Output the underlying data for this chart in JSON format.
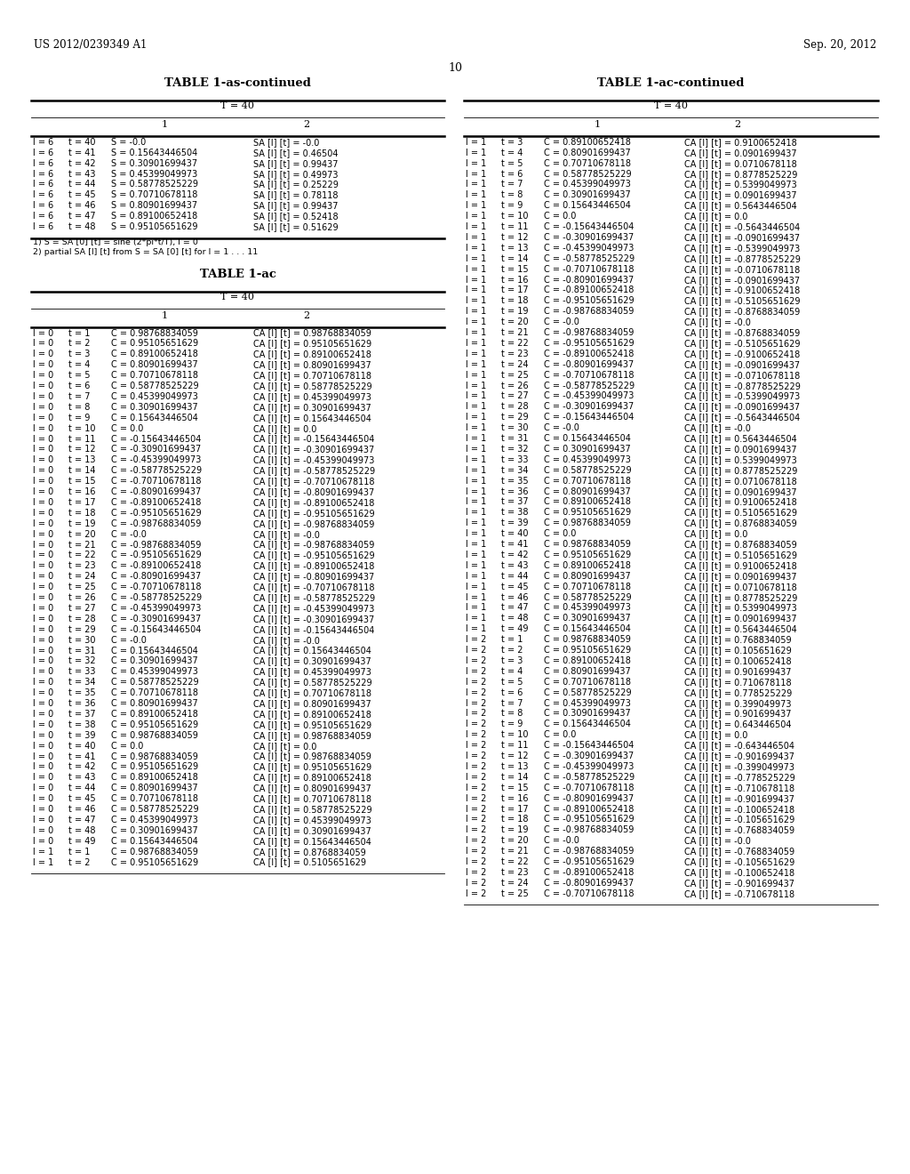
{
  "page_header_left": "US 2012/0239349 A1",
  "page_header_right": "Sep. 20, 2012",
  "page_number": "10",
  "bg_color": "#ffffff",
  "text_color": "#000000",
  "table_as_title": "TABLE 1-as-continued",
  "table_as_subtitle": "T = 40",
  "table_as_col1": "1",
  "table_as_col2": "2",
  "table_as_rows": [
    [
      "l = 6",
      "t = 40",
      "S = -0.0",
      "SA [l] [t] = -0.0"
    ],
    [
      "l = 6",
      "t = 41",
      "S = 0.15643446504",
      "SA [l] [t] = 0.46504"
    ],
    [
      "l = 6",
      "t = 42",
      "S = 0.30901699437",
      "SA [l] [t] = 0.99437"
    ],
    [
      "l = 6",
      "t = 43",
      "S = 0.45399049973",
      "SA [l] [t] = 0.49973"
    ],
    [
      "l = 6",
      "t = 44",
      "S = 0.58778525229",
      "SA [l] [t] = 0.25229"
    ],
    [
      "l = 6",
      "t = 45",
      "S = 0.70710678118",
      "SA [l] [t] = 0.78118"
    ],
    [
      "l = 6",
      "t = 46",
      "S = 0.80901699437",
      "SA [l] [t] = 0.99437"
    ],
    [
      "l = 6",
      "t = 47",
      "S = 0.89100652418",
      "SA [l] [t] = 0.52418"
    ],
    [
      "l = 6",
      "t = 48",
      "S = 0.95105651629",
      "SA [l] [t] = 0.51629"
    ]
  ],
  "table_as_footnotes": [
    "1) S = SA [0] [t] = sine (2*pi*t/T), l = 0",
    "2) partial SA [l] [t] from S = SA [0] [t] for l = 1 . . . 11"
  ],
  "table_ac_title": "TABLE 1-ac",
  "table_ac_subtitle": "T = 40",
  "table_ac_col1": "1",
  "table_ac_col2": "2",
  "table_ac_rows": [
    [
      "l = 0",
      "t = 1",
      "C = 0.98768834059",
      "CA [l] [t] = 0.98768834059"
    ],
    [
      "l = 0",
      "t = 2",
      "C = 0.95105651629",
      "CA [l] [t] = 0.95105651629"
    ],
    [
      "l = 0",
      "t = 3",
      "C = 0.89100652418",
      "CA [l] [t] = 0.89100652418"
    ],
    [
      "l = 0",
      "t = 4",
      "C = 0.80901699437",
      "CA [l] [t] = 0.80901699437"
    ],
    [
      "l = 0",
      "t = 5",
      "C = 0.70710678118",
      "CA [l] [t] = 0.70710678118"
    ],
    [
      "l = 0",
      "t = 6",
      "C = 0.58778525229",
      "CA [l] [t] = 0.58778525229"
    ],
    [
      "l = 0",
      "t = 7",
      "C = 0.45399049973",
      "CA [l] [t] = 0.45399049973"
    ],
    [
      "l = 0",
      "t = 8",
      "C = 0.30901699437",
      "CA [l] [t] = 0.30901699437"
    ],
    [
      "l = 0",
      "t = 9",
      "C = 0.15643446504",
      "CA [l] [t] = 0.15643446504"
    ],
    [
      "l = 0",
      "t = 10",
      "C = 0.0",
      "CA [l] [t] = 0.0"
    ],
    [
      "l = 0",
      "t = 11",
      "C = -0.15643446504",
      "CA [l] [t] = -0.15643446504"
    ],
    [
      "l = 0",
      "t = 12",
      "C = -0.30901699437",
      "CA [l] [t] = -0.30901699437"
    ],
    [
      "l = 0",
      "t = 13",
      "C = -0.45399049973",
      "CA [l] [t] = -0.45399049973"
    ],
    [
      "l = 0",
      "t = 14",
      "C = -0.58778525229",
      "CA [l] [t] = -0.58778525229"
    ],
    [
      "l = 0",
      "t = 15",
      "C = -0.70710678118",
      "CA [l] [t] = -0.70710678118"
    ],
    [
      "l = 0",
      "t = 16",
      "C = -0.80901699437",
      "CA [l] [t] = -0.80901699437"
    ],
    [
      "l = 0",
      "t = 17",
      "C = -0.89100652418",
      "CA [l] [t] = -0.89100652418"
    ],
    [
      "l = 0",
      "t = 18",
      "C = -0.95105651629",
      "CA [l] [t] = -0.95105651629"
    ],
    [
      "l = 0",
      "t = 19",
      "C = -0.98768834059",
      "CA [l] [t] = -0.98768834059"
    ],
    [
      "l = 0",
      "t = 20",
      "C = -0.0",
      "CA [l] [t] = -0.0"
    ],
    [
      "l = 0",
      "t = 21",
      "C = -0.98768834059",
      "CA [l] [t] = -0.98768834059"
    ],
    [
      "l = 0",
      "t = 22",
      "C = -0.95105651629",
      "CA [l] [t] = -0.95105651629"
    ],
    [
      "l = 0",
      "t = 23",
      "C = -0.89100652418",
      "CA [l] [t] = -0.89100652418"
    ],
    [
      "l = 0",
      "t = 24",
      "C = -0.80901699437",
      "CA [l] [t] = -0.80901699437"
    ],
    [
      "l = 0",
      "t = 25",
      "C = -0.70710678118",
      "CA [l] [t] = -0.70710678118"
    ],
    [
      "l = 0",
      "t = 26",
      "C = -0.58778525229",
      "CA [l] [t] = -0.58778525229"
    ],
    [
      "l = 0",
      "t = 27",
      "C = -0.45399049973",
      "CA [l] [t] = -0.45399049973"
    ],
    [
      "l = 0",
      "t = 28",
      "C = -0.30901699437",
      "CA [l] [t] = -0.30901699437"
    ],
    [
      "l = 0",
      "t = 29",
      "C = -0.15643446504",
      "CA [l] [t] = -0.15643446504"
    ],
    [
      "l = 0",
      "t = 30",
      "C = -0.0",
      "CA [l] [t] = -0.0"
    ],
    [
      "l = 0",
      "t = 31",
      "C = 0.15643446504",
      "CA [l] [t] = 0.15643446504"
    ],
    [
      "l = 0",
      "t = 32",
      "C = 0.30901699437",
      "CA [l] [t] = 0.30901699437"
    ],
    [
      "l = 0",
      "t = 33",
      "C = 0.45399049973",
      "CA [l] [t] = 0.45399049973"
    ],
    [
      "l = 0",
      "t = 34",
      "C = 0.58778525229",
      "CA [l] [t] = 0.58778525229"
    ],
    [
      "l = 0",
      "t = 35",
      "C = 0.70710678118",
      "CA [l] [t] = 0.70710678118"
    ],
    [
      "l = 0",
      "t = 36",
      "C = 0.80901699437",
      "CA [l] [t] = 0.80901699437"
    ],
    [
      "l = 0",
      "t = 37",
      "C = 0.89100652418",
      "CA [l] [t] = 0.89100652418"
    ],
    [
      "l = 0",
      "t = 38",
      "C = 0.95105651629",
      "CA [l] [t] = 0.95105651629"
    ],
    [
      "l = 0",
      "t = 39",
      "C = 0.98768834059",
      "CA [l] [t] = 0.98768834059"
    ],
    [
      "l = 0",
      "t = 40",
      "C = 0.0",
      "CA [l] [t] = 0.0"
    ],
    [
      "l = 0",
      "t = 41",
      "C = 0.98768834059",
      "CA [l] [t] = 0.98768834059"
    ],
    [
      "l = 0",
      "t = 42",
      "C = 0.95105651629",
      "CA [l] [t] = 0.95105651629"
    ],
    [
      "l = 0",
      "t = 43",
      "C = 0.89100652418",
      "CA [l] [t] = 0.89100652418"
    ],
    [
      "l = 0",
      "t = 44",
      "C = 0.80901699437",
      "CA [l] [t] = 0.80901699437"
    ],
    [
      "l = 0",
      "t = 45",
      "C = 0.70710678118",
      "CA [l] [t] = 0.70710678118"
    ],
    [
      "l = 0",
      "t = 46",
      "C = 0.58778525229",
      "CA [l] [t] = 0.58778525229"
    ],
    [
      "l = 0",
      "t = 47",
      "C = 0.45399049973",
      "CA [l] [t] = 0.45399049973"
    ],
    [
      "l = 0",
      "t = 48",
      "C = 0.30901699437",
      "CA [l] [t] = 0.30901699437"
    ],
    [
      "l = 0",
      "t = 49",
      "C = 0.15643446504",
      "CA [l] [t] = 0.15643446504"
    ],
    [
      "l = 1",
      "t = 1",
      "C = 0.98768834059",
      "CA [l] [t] = 0.8768834059"
    ],
    [
      "l = 1",
      "t = 2",
      "C = 0.95105651629",
      "CA [l] [t] = 0.5105651629"
    ]
  ],
  "table_ac2_title": "TABLE 1-ac-continued",
  "table_ac2_subtitle": "T = 40",
  "table_ac2_col1": "1",
  "table_ac2_col2": "2",
  "table_ac2_rows": [
    [
      "l = 1",
      "t = 3",
      "C = 0.89100652418",
      "CA [l] [t] = 0.9100652418"
    ],
    [
      "l = 1",
      "t = 4",
      "C = 0.80901699437",
      "CA [l] [t] = 0.0901699437"
    ],
    [
      "l = 1",
      "t = 5",
      "C = 0.70710678118",
      "CA [l] [t] = 0.0710678118"
    ],
    [
      "l = 1",
      "t = 6",
      "C = 0.58778525229",
      "CA [l] [t] = 0.8778525229"
    ],
    [
      "l = 1",
      "t = 7",
      "C = 0.45399049973",
      "CA [l] [t] = 0.5399049973"
    ],
    [
      "l = 1",
      "t = 8",
      "C = 0.30901699437",
      "CA [l] [t] = 0.0901699437"
    ],
    [
      "l = 1",
      "t = 9",
      "C = 0.15643446504",
      "CA [l] [t] = 0.5643446504"
    ],
    [
      "l = 1",
      "t = 10",
      "C = 0.0",
      "CA [l] [t] = 0.0"
    ],
    [
      "l = 1",
      "t = 11",
      "C = -0.15643446504",
      "CA [l] [t] = -0.5643446504"
    ],
    [
      "l = 1",
      "t = 12",
      "C = -0.30901699437",
      "CA [l] [t] = -0.0901699437"
    ],
    [
      "l = 1",
      "t = 13",
      "C = -0.45399049973",
      "CA [l] [t] = -0.5399049973"
    ],
    [
      "l = 1",
      "t = 14",
      "C = -0.58778525229",
      "CA [l] [t] = -0.8778525229"
    ],
    [
      "l = 1",
      "t = 15",
      "C = -0.70710678118",
      "CA [l] [t] = -0.0710678118"
    ],
    [
      "l = 1",
      "t = 16",
      "C = -0.80901699437",
      "CA [l] [t] = -0.0901699437"
    ],
    [
      "l = 1",
      "t = 17",
      "C = -0.89100652418",
      "CA [l] [t] = -0.9100652418"
    ],
    [
      "l = 1",
      "t = 18",
      "C = -0.95105651629",
      "CA [l] [t] = -0.5105651629"
    ],
    [
      "l = 1",
      "t = 19",
      "C = -0.98768834059",
      "CA [l] [t] = -0.8768834059"
    ],
    [
      "l = 1",
      "t = 20",
      "C = -0.0",
      "CA [l] [t] = -0.0"
    ],
    [
      "l = 1",
      "t = 21",
      "C = -0.98768834059",
      "CA [l] [t] = -0.8768834059"
    ],
    [
      "l = 1",
      "t = 22",
      "C = -0.95105651629",
      "CA [l] [t] = -0.5105651629"
    ],
    [
      "l = 1",
      "t = 23",
      "C = -0.89100652418",
      "CA [l] [t] = -0.9100652418"
    ],
    [
      "l = 1",
      "t = 24",
      "C = -0.80901699437",
      "CA [l] [t] = -0.0901699437"
    ],
    [
      "l = 1",
      "t = 25",
      "C = -0.70710678118",
      "CA [l] [t] = -0.0710678118"
    ],
    [
      "l = 1",
      "t = 26",
      "C = -0.58778525229",
      "CA [l] [t] = -0.8778525229"
    ],
    [
      "l = 1",
      "t = 27",
      "C = -0.45399049973",
      "CA [l] [t] = -0.5399049973"
    ],
    [
      "l = 1",
      "t = 28",
      "C = -0.30901699437",
      "CA [l] [t] = -0.0901699437"
    ],
    [
      "l = 1",
      "t = 29",
      "C = -0.15643446504",
      "CA [l] [t] = -0.5643446504"
    ],
    [
      "l = 1",
      "t = 30",
      "C = -0.0",
      "CA [l] [t] = -0.0"
    ],
    [
      "l = 1",
      "t = 31",
      "C = 0.15643446504",
      "CA [l] [t] = 0.5643446504"
    ],
    [
      "l = 1",
      "t = 32",
      "C = 0.30901699437",
      "CA [l] [t] = 0.0901699437"
    ],
    [
      "l = 1",
      "t = 33",
      "C = 0.45399049973",
      "CA [l] [t] = 0.5399049973"
    ],
    [
      "l = 1",
      "t = 34",
      "C = 0.58778525229",
      "CA [l] [t] = 0.8778525229"
    ],
    [
      "l = 1",
      "t = 35",
      "C = 0.70710678118",
      "CA [l] [t] = 0.0710678118"
    ],
    [
      "l = 1",
      "t = 36",
      "C = 0.80901699437",
      "CA [l] [t] = 0.0901699437"
    ],
    [
      "l = 1",
      "t = 37",
      "C = 0.89100652418",
      "CA [l] [t] = 0.9100652418"
    ],
    [
      "l = 1",
      "t = 38",
      "C = 0.95105651629",
      "CA [l] [t] = 0.5105651629"
    ],
    [
      "l = 1",
      "t = 39",
      "C = 0.98768834059",
      "CA [l] [t] = 0.8768834059"
    ],
    [
      "l = 1",
      "t = 40",
      "C = 0.0",
      "CA [l] [t] = 0.0"
    ],
    [
      "l = 1",
      "t = 41",
      "C = 0.98768834059",
      "CA [l] [t] = 0.8768834059"
    ],
    [
      "l = 1",
      "t = 42",
      "C = 0.95105651629",
      "CA [l] [t] = 0.5105651629"
    ],
    [
      "l = 1",
      "t = 43",
      "C = 0.89100652418",
      "CA [l] [t] = 0.9100652418"
    ],
    [
      "l = 1",
      "t = 44",
      "C = 0.80901699437",
      "CA [l] [t] = 0.0901699437"
    ],
    [
      "l = 1",
      "t = 45",
      "C = 0.70710678118",
      "CA [l] [t] = 0.0710678118"
    ],
    [
      "l = 1",
      "t = 46",
      "C = 0.58778525229",
      "CA [l] [t] = 0.8778525229"
    ],
    [
      "l = 1",
      "t = 47",
      "C = 0.45399049973",
      "CA [l] [t] = 0.5399049973"
    ],
    [
      "l = 1",
      "t = 48",
      "C = 0.30901699437",
      "CA [l] [t] = 0.0901699437"
    ],
    [
      "l = 1",
      "t = 49",
      "C = 0.15643446504",
      "CA [l] [t] = 0.5643446504"
    ],
    [
      "l = 2",
      "t = 1",
      "C = 0.98768834059",
      "CA [l] [t] = 0.768834059"
    ],
    [
      "l = 2",
      "t = 2",
      "C = 0.95105651629",
      "CA [l] [t] = 0.105651629"
    ],
    [
      "l = 2",
      "t = 3",
      "C = 0.89100652418",
      "CA [l] [t] = 0.100652418"
    ],
    [
      "l = 2",
      "t = 4",
      "C = 0.80901699437",
      "CA [l] [t] = 0.901699437"
    ],
    [
      "l = 2",
      "t = 5",
      "C = 0.70710678118",
      "CA [l] [t] = 0.710678118"
    ],
    [
      "l = 2",
      "t = 6",
      "C = 0.58778525229",
      "CA [l] [t] = 0.778525229"
    ],
    [
      "l = 2",
      "t = 7",
      "C = 0.45399049973",
      "CA [l] [t] = 0.399049973"
    ],
    [
      "l = 2",
      "t = 8",
      "C = 0.30901699437",
      "CA [l] [t] = 0.901699437"
    ],
    [
      "l = 2",
      "t = 9",
      "C = 0.15643446504",
      "CA [l] [t] = 0.643446504"
    ],
    [
      "l = 2",
      "t = 10",
      "C = 0.0",
      "CA [l] [t] = 0.0"
    ],
    [
      "l = 2",
      "t = 11",
      "C = -0.15643446504",
      "CA [l] [t] = -0.643446504"
    ],
    [
      "l = 2",
      "t = 12",
      "C = -0.30901699437",
      "CA [l] [t] = -0.901699437"
    ],
    [
      "l = 2",
      "t = 13",
      "C = -0.45399049973",
      "CA [l] [t] = -0.399049973"
    ],
    [
      "l = 2",
      "t = 14",
      "C = -0.58778525229",
      "CA [l] [t] = -0.778525229"
    ],
    [
      "l = 2",
      "t = 15",
      "C = -0.70710678118",
      "CA [l] [t] = -0.710678118"
    ],
    [
      "l = 2",
      "t = 16",
      "C = -0.80901699437",
      "CA [l] [t] = -0.901699437"
    ],
    [
      "l = 2",
      "t = 17",
      "C = -0.89100652418",
      "CA [l] [t] = -0.100652418"
    ],
    [
      "l = 2",
      "t = 18",
      "C = -0.95105651629",
      "CA [l] [t] = -0.105651629"
    ],
    [
      "l = 2",
      "t = 19",
      "C = -0.98768834059",
      "CA [l] [t] = -0.768834059"
    ],
    [
      "l = 2",
      "t = 20",
      "C = -0.0",
      "CA [l] [t] = -0.0"
    ],
    [
      "l = 2",
      "t = 21",
      "C = -0.98768834059",
      "CA [l] [t] = -0.768834059"
    ],
    [
      "l = 2",
      "t = 22",
      "C = -0.95105651629",
      "CA [l] [t] = -0.105651629"
    ],
    [
      "l = 2",
      "t = 23",
      "C = -0.89100652418",
      "CA [l] [t] = -0.100652418"
    ],
    [
      "l = 2",
      "t = 24",
      "C = -0.80901699437",
      "CA [l] [t] = -0.901699437"
    ],
    [
      "l = 2",
      "t = 25",
      "C = -0.70710678118",
      "CA [l] [t] = -0.710678118"
    ]
  ]
}
